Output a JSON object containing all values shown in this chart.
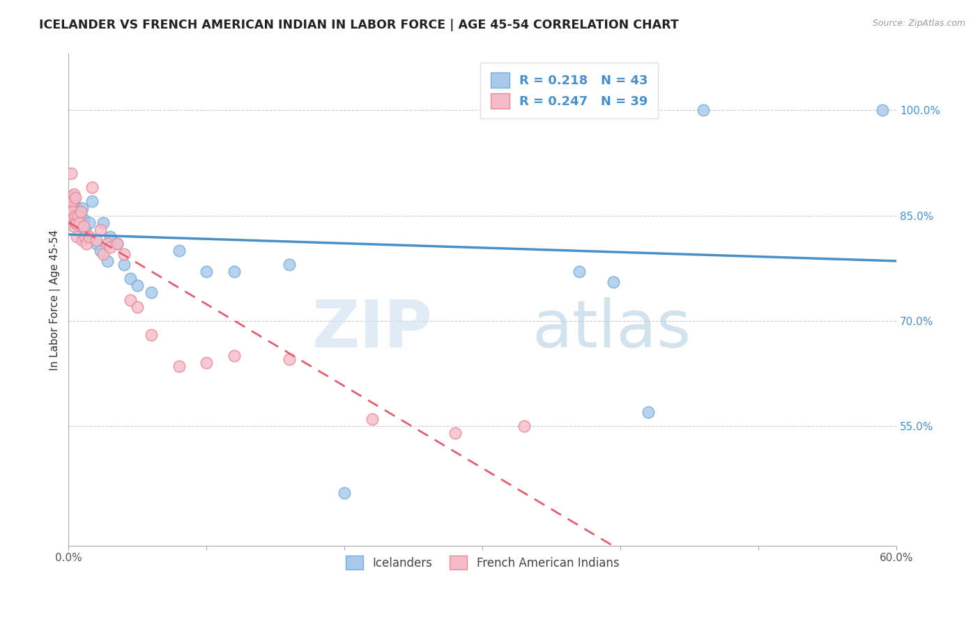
{
  "title": "ICELANDER VS FRENCH AMERICAN INDIAN IN LABOR FORCE | AGE 45-54 CORRELATION CHART",
  "source": "Source: ZipAtlas.com",
  "ylabel": "In Labor Force | Age 45-54",
  "xlim": [
    0.0,
    0.6
  ],
  "ylim": [
    0.38,
    1.08
  ],
  "xticks": [
    0.0,
    0.1,
    0.2,
    0.3,
    0.4,
    0.5,
    0.6
  ],
  "xtick_labels": [
    "0.0%",
    "",
    "",
    "",
    "",
    "",
    "60.0%"
  ],
  "yticks_right": [
    0.55,
    0.7,
    0.85,
    1.0
  ],
  "blue_scatter_color": "#A8C8EC",
  "blue_scatter_edge": "#7AAED6",
  "pink_scatter_color": "#F5BCC8",
  "pink_scatter_edge": "#E88A9A",
  "blue_line_color": "#4A90C8",
  "pink_line_color": "#E06070",
  "R_blue": 0.218,
  "N_blue": 43,
  "R_pink": 0.247,
  "N_pink": 39,
  "legend_labels": [
    "Icelanders",
    "French American Indians"
  ],
  "watermark_zip": "ZIP",
  "watermark_atlas": "atlas",
  "icelanders_x": [
    0.001,
    0.002,
    0.002,
    0.003,
    0.003,
    0.003,
    0.004,
    0.004,
    0.004,
    0.005,
    0.005,
    0.005,
    0.006,
    0.006,
    0.007,
    0.008,
    0.009,
    0.01,
    0.011,
    0.012,
    0.013,
    0.015,
    0.017,
    0.02,
    0.023,
    0.025,
    0.028,
    0.03,
    0.035,
    0.04,
    0.045,
    0.05,
    0.06,
    0.08,
    0.1,
    0.12,
    0.16,
    0.2,
    0.37,
    0.395,
    0.42,
    0.46,
    0.59
  ],
  "icelanders_y": [
    0.868,
    0.862,
    0.87,
    0.878,
    0.85,
    0.86,
    0.855,
    0.84,
    0.87,
    0.862,
    0.845,
    0.855,
    0.86,
    0.84,
    0.835,
    0.84,
    0.85,
    0.86,
    0.845,
    0.83,
    0.82,
    0.84,
    0.87,
    0.81,
    0.8,
    0.84,
    0.785,
    0.82,
    0.81,
    0.78,
    0.76,
    0.75,
    0.74,
    0.8,
    0.77,
    0.77,
    0.78,
    0.455,
    0.77,
    0.755,
    0.57,
    1.0,
    1.0
  ],
  "french_x": [
    0.001,
    0.002,
    0.002,
    0.003,
    0.003,
    0.003,
    0.004,
    0.004,
    0.005,
    0.005,
    0.005,
    0.006,
    0.006,
    0.007,
    0.008,
    0.009,
    0.01,
    0.011,
    0.012,
    0.013,
    0.015,
    0.017,
    0.02,
    0.023,
    0.025,
    0.028,
    0.03,
    0.035,
    0.04,
    0.045,
    0.05,
    0.06,
    0.08,
    0.1,
    0.12,
    0.16,
    0.22,
    0.28,
    0.33
  ],
  "french_y": [
    0.855,
    0.91,
    0.86,
    0.87,
    0.855,
    0.845,
    0.88,
    0.835,
    0.875,
    0.84,
    0.85,
    0.84,
    0.82,
    0.85,
    0.84,
    0.855,
    0.815,
    0.835,
    0.82,
    0.81,
    0.82,
    0.89,
    0.815,
    0.83,
    0.795,
    0.81,
    0.805,
    0.81,
    0.795,
    0.73,
    0.72,
    0.68,
    0.635,
    0.64,
    0.65,
    0.645,
    0.56,
    0.54,
    0.55
  ]
}
